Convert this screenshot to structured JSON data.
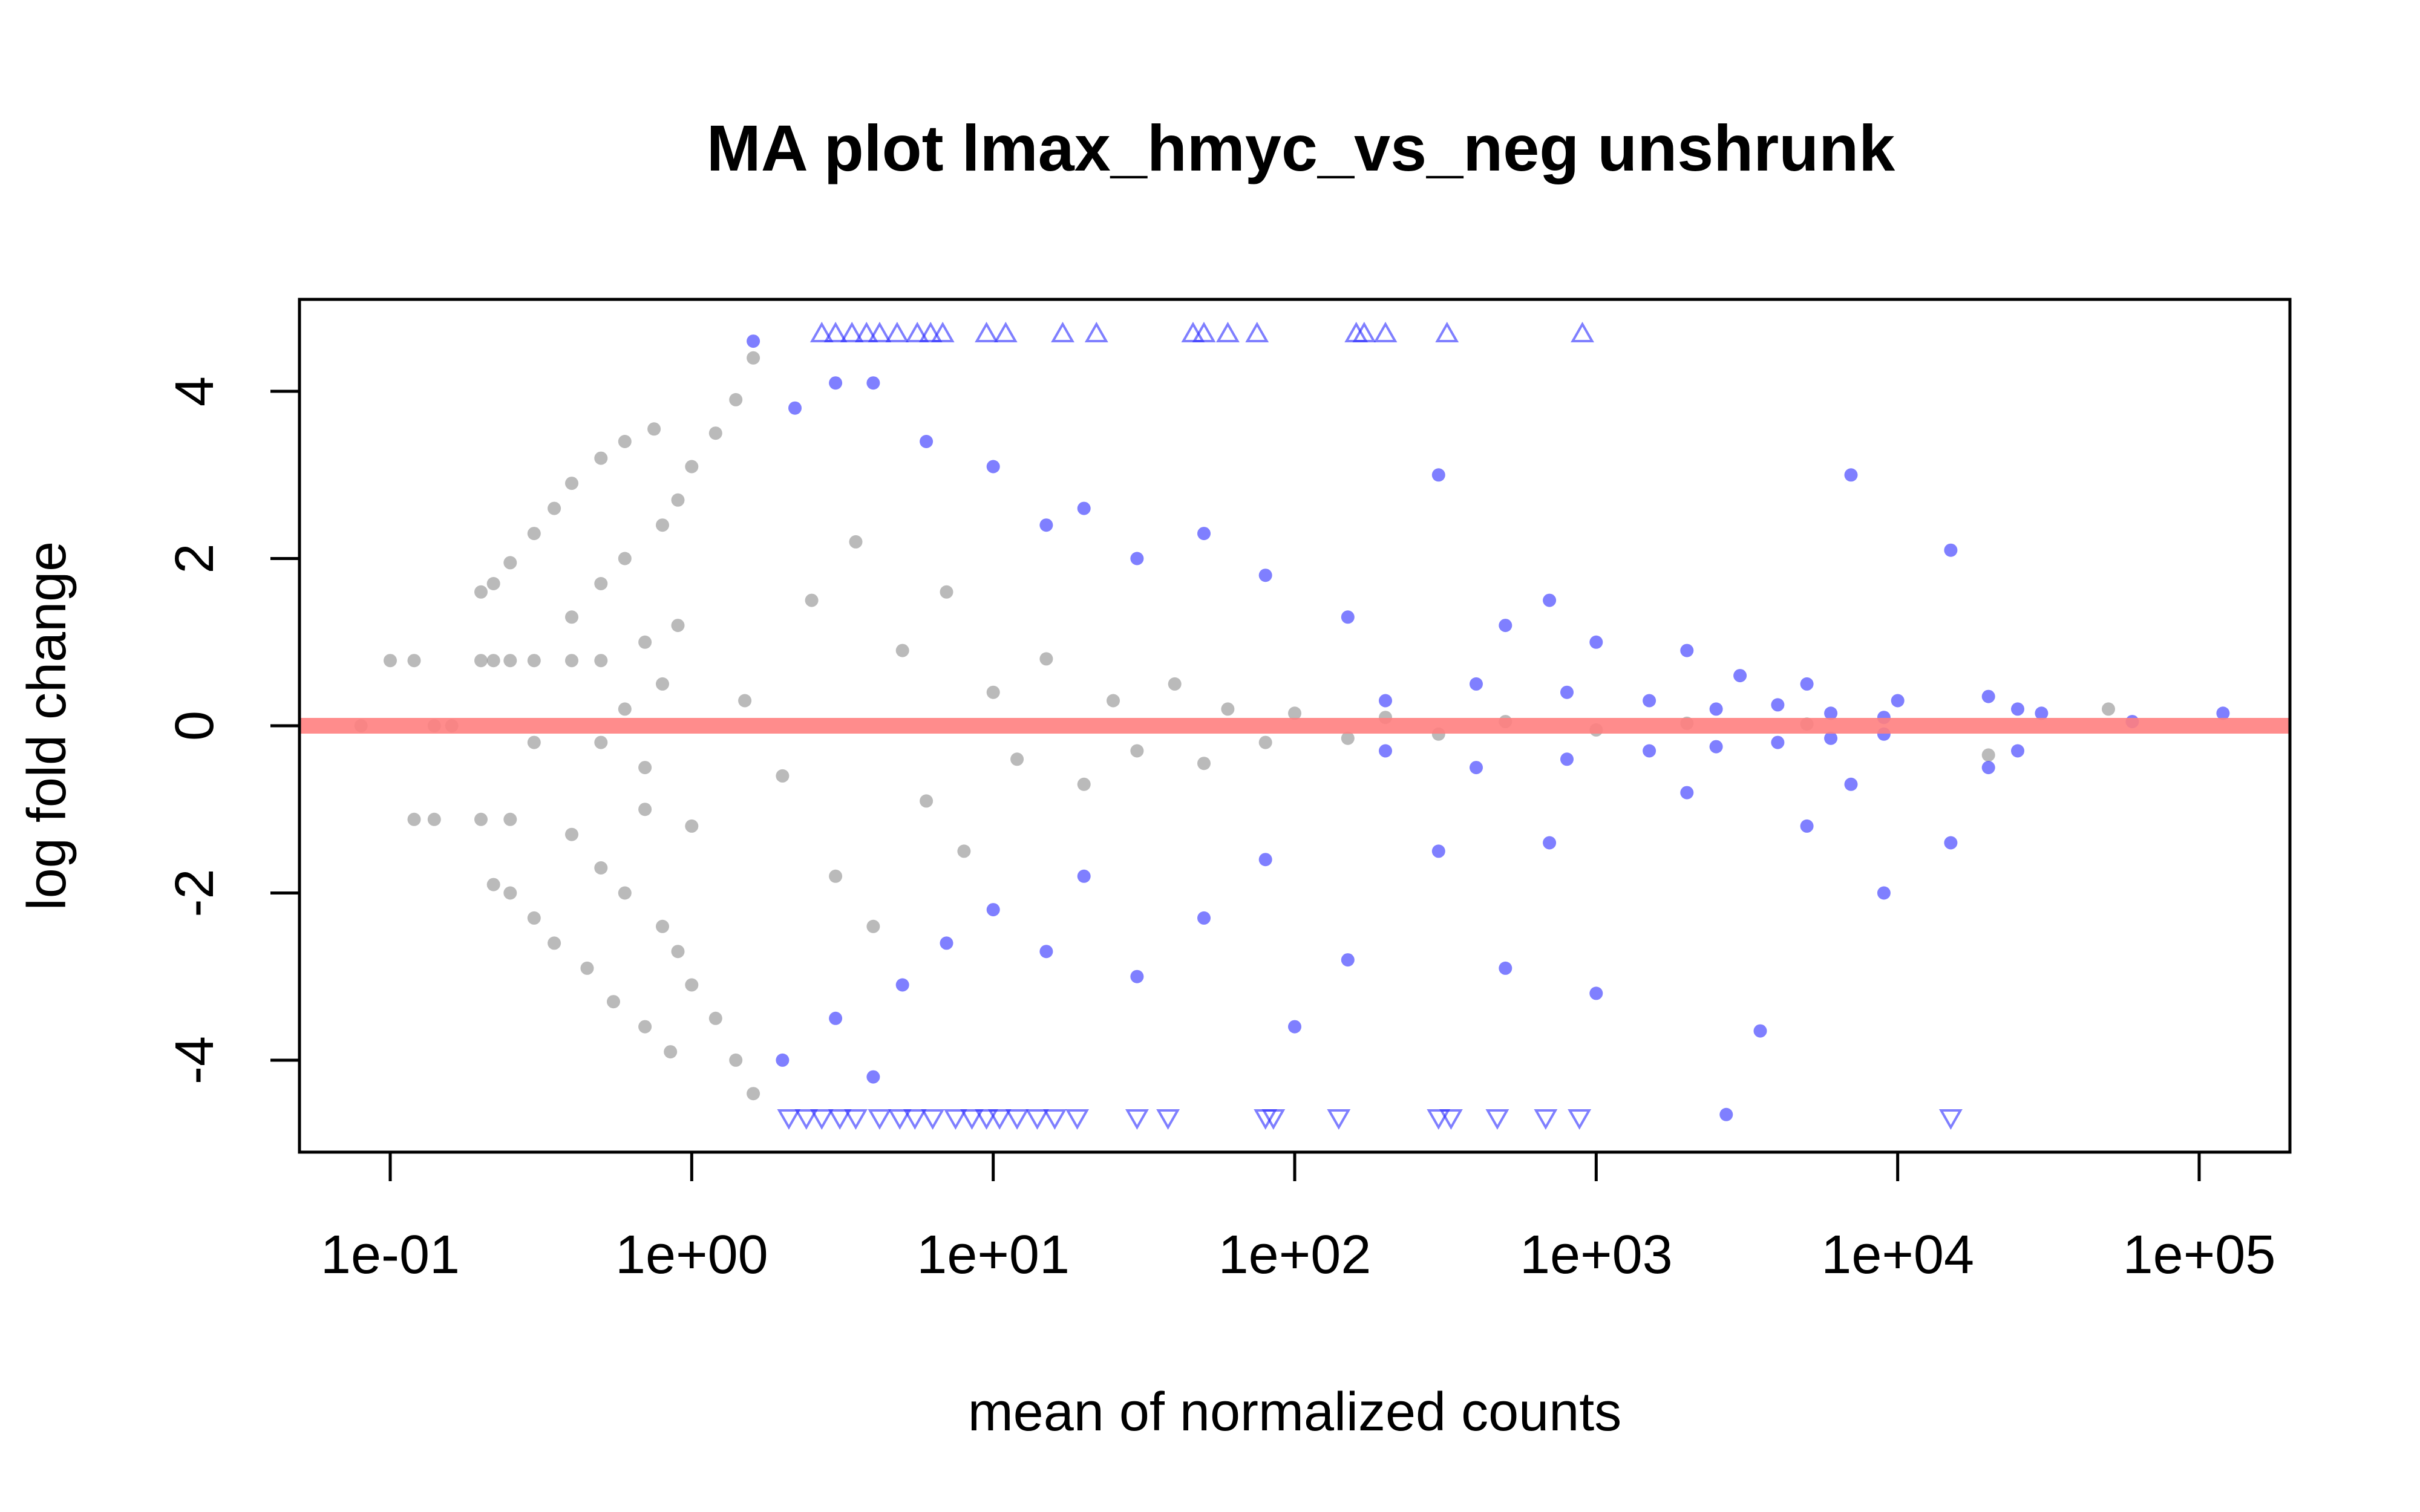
{
  "chart_data": {
    "type": "scatter",
    "title": "MA plot lmax_hmyc_vs_neg unshrunk",
    "xlabel": "mean of normalized counts",
    "ylabel": "log fold change",
    "x_scale": "log10",
    "xlim": [
      0.05,
      200000
    ],
    "ylim": [
      -5.1,
      5.1
    ],
    "x_ticks": [
      {
        "value": 0.1,
        "label": "1e-01"
      },
      {
        "value": 1,
        "label": "1e+00"
      },
      {
        "value": 10,
        "label": "1e+01"
      },
      {
        "value": 100,
        "label": "1e+02"
      },
      {
        "value": 1000,
        "label": "1e+03"
      },
      {
        "value": 10000,
        "label": "1e+04"
      },
      {
        "value": 100000,
        "label": "1e+05"
      }
    ],
    "y_ticks": [
      {
        "value": -4,
        "label": "-4"
      },
      {
        "value": -2,
        "label": "-2"
      },
      {
        "value": 0,
        "label": "0"
      },
      {
        "value": 2,
        "label": "2"
      },
      {
        "value": 4,
        "label": "4"
      }
    ],
    "reference_line": {
      "y": 0,
      "color": "#ff7f7f"
    },
    "colors": {
      "significant": "#2a2aff",
      "not_significant": "#8c8c8c"
    },
    "series": [
      {
        "key": "not_significant",
        "points": [
          [
            0.08,
            0
          ],
          [
            0.1,
            0.78
          ],
          [
            0.12,
            0.78
          ],
          [
            0.12,
            -1.12
          ],
          [
            0.14,
            -1.12
          ],
          [
            0.14,
            0
          ],
          [
            0.16,
            0
          ],
          [
            0.2,
            0.78
          ],
          [
            0.22,
            0.78
          ],
          [
            0.25,
            0.78
          ],
          [
            0.2,
            1.6
          ],
          [
            0.22,
            1.7
          ],
          [
            0.25,
            1.95
          ],
          [
            0.3,
            2.3
          ],
          [
            0.35,
            2.6
          ],
          [
            0.4,
            2.9
          ],
          [
            0.5,
            3.2
          ],
          [
            0.6,
            3.4
          ],
          [
            0.75,
            3.55
          ],
          [
            0.2,
            -1.12
          ],
          [
            0.25,
            -1.12
          ],
          [
            0.22,
            -1.9
          ],
          [
            0.25,
            -2.0
          ],
          [
            0.3,
            -2.3
          ],
          [
            0.35,
            -2.6
          ],
          [
            0.45,
            -2.9
          ],
          [
            0.55,
            -3.3
          ],
          [
            0.7,
            -3.6
          ],
          [
            0.85,
            -3.9
          ],
          [
            0.3,
            0.78
          ],
          [
            0.4,
            0.78
          ],
          [
            0.5,
            0.78
          ],
          [
            0.3,
            -0.2
          ],
          [
            0.5,
            -0.2
          ],
          [
            0.6,
            0.2
          ],
          [
            0.7,
            -0.5
          ],
          [
            0.8,
            0.5
          ],
          [
            0.9,
            1.2
          ],
          [
            1.0,
            -1.2
          ],
          [
            0.4,
            1.3
          ],
          [
            0.5,
            1.7
          ],
          [
            0.6,
            2.0
          ],
          [
            0.7,
            1.0
          ],
          [
            0.8,
            2.4
          ],
          [
            0.9,
            2.7
          ],
          [
            1.0,
            3.1
          ],
          [
            1.2,
            3.5
          ],
          [
            1.4,
            3.9
          ],
          [
            1.6,
            4.4
          ],
          [
            0.4,
            -1.3
          ],
          [
            0.5,
            -1.7
          ],
          [
            0.6,
            -2.0
          ],
          [
            0.7,
            -1.0
          ],
          [
            0.8,
            -2.4
          ],
          [
            0.9,
            -2.7
          ],
          [
            1.0,
            -3.1
          ],
          [
            1.2,
            -3.5
          ],
          [
            1.4,
            -4.0
          ],
          [
            1.6,
            -4.4
          ],
          [
            1.5,
            0.3
          ],
          [
            2,
            -0.6
          ],
          [
            2.5,
            1.5
          ],
          [
            3,
            -1.8
          ],
          [
            3.5,
            2.2
          ],
          [
            4,
            -2.4
          ],
          [
            5,
            0.9
          ],
          [
            6,
            -0.9
          ],
          [
            7,
            1.6
          ],
          [
            8,
            -1.5
          ],
          [
            10,
            0.4
          ],
          [
            12,
            -0.4
          ],
          [
            15,
            0.8
          ],
          [
            20,
            -0.7
          ],
          [
            25,
            0.3
          ],
          [
            30,
            -0.3
          ],
          [
            40,
            0.5
          ],
          [
            50,
            -0.45
          ],
          [
            60,
            0.2
          ],
          [
            80,
            -0.2
          ],
          [
            100,
            0.15
          ],
          [
            150,
            -0.15
          ],
          [
            200,
            0.1
          ],
          [
            300,
            -0.1
          ],
          [
            500,
            0.05
          ],
          [
            1000,
            -0.05
          ],
          [
            2000,
            0.03
          ],
          [
            5000,
            0.02
          ],
          [
            20000,
            -0.35
          ],
          [
            50000,
            0.2
          ]
        ]
      },
      {
        "key": "significant",
        "points": [
          [
            1.6,
            4.6
          ],
          [
            2.2,
            3.8
          ],
          [
            3,
            4.1
          ],
          [
            4,
            4.1
          ],
          [
            6,
            3.4
          ],
          [
            10,
            3.1
          ],
          [
            15,
            2.4
          ],
          [
            20,
            2.6
          ],
          [
            30,
            2.0
          ],
          [
            50,
            2.3
          ],
          [
            80,
            1.8
          ],
          [
            150,
            1.3
          ],
          [
            300,
            3.0
          ],
          [
            500,
            1.2
          ],
          [
            700,
            1.5
          ],
          [
            1000,
            1.0
          ],
          [
            2000,
            0.9
          ],
          [
            3000,
            0.6
          ],
          [
            5000,
            0.5
          ],
          [
            7000,
            3.0
          ],
          [
            10000,
            0.3
          ],
          [
            15000,
            2.1
          ],
          [
            20000,
            0.35
          ],
          [
            25000,
            0.2
          ],
          [
            30000,
            0.15
          ],
          [
            60000,
            0.05
          ],
          [
            120000,
            0.15
          ],
          [
            200,
            0.3
          ],
          [
            400,
            0.5
          ],
          [
            800,
            0.4
          ],
          [
            1500,
            0.3
          ],
          [
            2500,
            0.2
          ],
          [
            4000,
            0.25
          ],
          [
            6000,
            0.15
          ],
          [
            9000,
            0.1
          ],
          [
            200,
            -0.3
          ],
          [
            400,
            -0.5
          ],
          [
            800,
            -0.4
          ],
          [
            1500,
            -0.3
          ],
          [
            2500,
            -0.25
          ],
          [
            4000,
            -0.2
          ],
          [
            6000,
            -0.15
          ],
          [
            9000,
            -0.1
          ],
          [
            2,
            -4.0
          ],
          [
            3,
            -3.5
          ],
          [
            4,
            -4.2
          ],
          [
            5,
            -3.1
          ],
          [
            7,
            -2.6
          ],
          [
            10,
            -2.2
          ],
          [
            15,
            -2.7
          ],
          [
            20,
            -1.8
          ],
          [
            30,
            -3.0
          ],
          [
            50,
            -2.3
          ],
          [
            80,
            -1.6
          ],
          [
            100,
            -3.6
          ],
          [
            150,
            -2.8
          ],
          [
            300,
            -1.5
          ],
          [
            500,
            -2.9
          ],
          [
            700,
            -1.4
          ],
          [
            1000,
            -3.2
          ],
          [
            2000,
            -0.8
          ],
          [
            2700,
            -4.65
          ],
          [
            3500,
            -3.65
          ],
          [
            5000,
            -1.2
          ],
          [
            7000,
            -0.7
          ],
          [
            9000,
            -2.0
          ],
          [
            15000,
            -1.4
          ],
          [
            20000,
            -0.5
          ],
          [
            25000,
            -0.3
          ]
        ]
      }
    ],
    "out_of_range_top": [
      2.7,
      3.0,
      3.4,
      3.8,
      4.2,
      4.8,
      5.6,
      6.2,
      6.8,
      9.5,
      11,
      17,
      22,
      46,
      50,
      60,
      75,
      160,
      170,
      200,
      320,
      900
    ],
    "out_of_range_bottom": [
      2.1,
      2.4,
      2.7,
      3.1,
      3.5,
      4.2,
      4.9,
      5.5,
      6.3,
      7.5,
      8.5,
      9.5,
      10.5,
      12,
      14,
      16,
      19,
      30,
      38,
      80,
      85,
      140,
      300,
      330,
      470,
      680,
      880,
      15000
    ]
  }
}
